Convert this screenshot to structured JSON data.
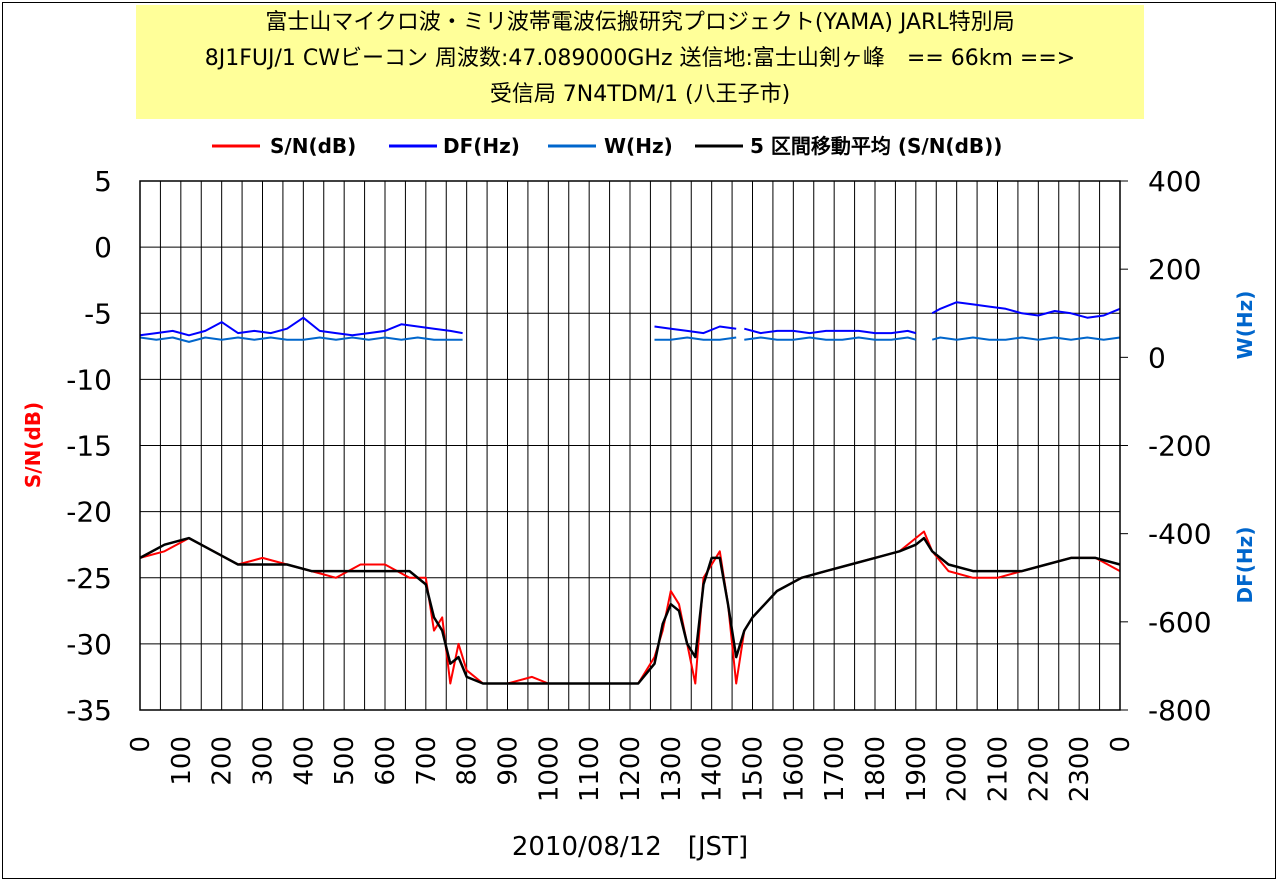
{
  "chart_data": {
    "type": "line",
    "title": [
      "富士山マイクロ波・ミリ波帯電波伝搬研究プロジェクト(YAMA) JARL特別局",
      "8J1FUJ/1 CWビーコン 周波数:47.089000GHz 送信地:富士山剣ヶ峰　== 66km ==>",
      "受信局 7N4TDM/1 (八王子市)"
    ],
    "xlabel": "2010/08/12　[JST]",
    "ylabel_left": "S/N(dB)",
    "ylabel_right_top": "W(Hz)",
    "ylabel_right_bottom": "DF(Hz)",
    "x_ticks": [
      "0",
      "100",
      "200",
      "300",
      "400",
      "500",
      "600",
      "700",
      "800",
      "900",
      "1000",
      "1100",
      "1200",
      "1300",
      "1400",
      "1500",
      "1600",
      "1700",
      "1800",
      "1900",
      "2000",
      "2100",
      "2200",
      "2300",
      "0"
    ],
    "y_left_ticks": [
      "5",
      "0",
      "-5",
      "-10",
      "-15",
      "-20",
      "-25",
      "-30",
      "-35"
    ],
    "y_right_ticks": [
      "400",
      "200",
      "0",
      "-200",
      "-400",
      "-600",
      "-800"
    ],
    "ylim_left": [
      -35,
      5
    ],
    "ylim_right": [
      -800,
      400
    ],
    "grid": true,
    "legend": [
      {
        "label": "S/N(dB)",
        "color": "#ff0000"
      },
      {
        "label": "DF(Hz)",
        "color": "#0000ff"
      },
      {
        "label": "W(Hz)",
        "color": "#0066cc"
      },
      {
        "label": "5 区間移動平均 (S/N(dB))",
        "color": "#000000"
      }
    ],
    "series": [
      {
        "name": "S/N(dB)",
        "axis": "left",
        "color": "#ff0000",
        "x": [
          0,
          60,
          120,
          180,
          240,
          300,
          360,
          420,
          480,
          540,
          600,
          660,
          700,
          720,
          740,
          760,
          780,
          800,
          840,
          900,
          960,
          1000,
          1060,
          1120,
          1180,
          1220,
          1260,
          1280,
          1300,
          1320,
          1340,
          1360,
          1380,
          1400,
          1420,
          1440,
          1460,
          1480,
          1500,
          1560,
          1620,
          1680,
          1740,
          1800,
          1860,
          1900,
          1920,
          1940,
          1980,
          2040,
          2100,
          2160,
          2220,
          2280,
          2340,
          2400
        ],
        "y": [
          -23.5,
          -23,
          -22,
          -23,
          -24,
          -23.5,
          -24,
          -24.5,
          -25,
          -24,
          -24,
          -25,
          -25,
          -29,
          -28,
          -33,
          -30,
          -32,
          -33,
          -33,
          -32.5,
          -33,
          -33,
          -33,
          -33,
          -33,
          -31,
          -29,
          -26,
          -27,
          -30,
          -33,
          -25,
          -24,
          -23,
          -27,
          -33,
          -29,
          -28,
          -26,
          -25,
          -24.5,
          -24,
          -23.5,
          -23,
          -22,
          -21.5,
          -23,
          -24.5,
          -25,
          -25,
          -24.5,
          -24,
          -23.5,
          -23.5,
          -24.5
        ]
      },
      {
        "name": "5 区間移動平均 (S/N(dB))",
        "axis": "left",
        "color": "#000000",
        "x": [
          0,
          60,
          120,
          180,
          240,
          300,
          360,
          420,
          480,
          540,
          600,
          660,
          700,
          720,
          740,
          760,
          780,
          800,
          840,
          900,
          960,
          1000,
          1060,
          1120,
          1180,
          1220,
          1260,
          1280,
          1300,
          1320,
          1340,
          1360,
          1380,
          1400,
          1420,
          1440,
          1460,
          1480,
          1500,
          1560,
          1620,
          1680,
          1740,
          1800,
          1860,
          1900,
          1920,
          1940,
          1980,
          2040,
          2100,
          2160,
          2220,
          2280,
          2340,
          2400
        ],
        "y": [
          -23.5,
          -22.5,
          -22,
          -23,
          -24,
          -24,
          -24,
          -24.5,
          -24.5,
          -24.5,
          -24.5,
          -24.5,
          -25.5,
          -28,
          -29,
          -31.5,
          -31,
          -32.5,
          -33,
          -33,
          -33,
          -33,
          -33,
          -33,
          -33,
          -33,
          -31.5,
          -28.5,
          -27,
          -27.5,
          -30,
          -31,
          -25.5,
          -23.5,
          -23.5,
          -27,
          -31,
          -29,
          -28,
          -26,
          -25,
          -24.5,
          -24,
          -23.5,
          -23,
          -22.5,
          -22,
          -23,
          -24,
          -24.5,
          -24.5,
          -24.5,
          -24,
          -23.5,
          -23.5,
          -24
        ]
      },
      {
        "name": "DF(Hz)",
        "axis": "right",
        "color": "#0000ff",
        "segments": [
          {
            "x": [
              0,
              40,
              80,
              120,
              160,
              200,
              240,
              280,
              320,
              360,
              400,
              440,
              480,
              520,
              560,
              600,
              640,
              680,
              720,
              760,
              790
            ],
            "y": [
              50,
              55,
              60,
              50,
              60,
              80,
              55,
              60,
              55,
              65,
              90,
              60,
              55,
              50,
              55,
              60,
              75,
              70,
              65,
              60,
              55
            ]
          },
          {
            "x": [
              1260,
              1300,
              1340,
              1380,
              1420,
              1460
            ],
            "y": [
              70,
              65,
              60,
              55,
              70,
              65
            ]
          },
          {
            "x": [
              1480,
              1520,
              1560,
              1600,
              1640,
              1680,
              1720,
              1760,
              1800,
              1840,
              1880,
              1900
            ],
            "y": [
              65,
              55,
              60,
              60,
              55,
              60,
              60,
              60,
              55,
              55,
              60,
              55
            ]
          },
          {
            "x": [
              1940,
              1960,
              2000,
              2040,
              2080,
              2120,
              2160,
              2200,
              2240,
              2280,
              2320,
              2360,
              2400
            ],
            "y": [
              100,
              110,
              125,
              120,
              115,
              110,
              100,
              95,
              105,
              100,
              90,
              95,
              110
            ]
          }
        ]
      },
      {
        "name": "W(Hz)",
        "axis": "right",
        "color": "#0066cc",
        "segments": [
          {
            "x": [
              0,
              40,
              80,
              120,
              160,
              200,
              240,
              280,
              320,
              360,
              400,
              440,
              480,
              520,
              560,
              600,
              640,
              680,
              720,
              760,
              790
            ],
            "y": [
              45,
              40,
              45,
              35,
              45,
              40,
              45,
              40,
              45,
              40,
              40,
              45,
              40,
              45,
              40,
              45,
              40,
              45,
              40,
              40,
              40
            ]
          },
          {
            "x": [
              1260,
              1300,
              1340,
              1380,
              1420,
              1460
            ],
            "y": [
              40,
              40,
              45,
              40,
              40,
              45
            ]
          },
          {
            "x": [
              1480,
              1520,
              1560,
              1600,
              1640,
              1680,
              1720,
              1760,
              1800,
              1840,
              1880,
              1900
            ],
            "y": [
              40,
              45,
              40,
              40,
              45,
              40,
              40,
              45,
              40,
              40,
              45,
              40
            ]
          },
          {
            "x": [
              1940,
              1960,
              2000,
              2040,
              2080,
              2120,
              2160,
              2200,
              2240,
              2280,
              2320,
              2360,
              2400
            ],
            "y": [
              40,
              45,
              40,
              45,
              40,
              40,
              45,
              40,
              45,
              40,
              45,
              40,
              45
            ]
          }
        ]
      }
    ]
  }
}
